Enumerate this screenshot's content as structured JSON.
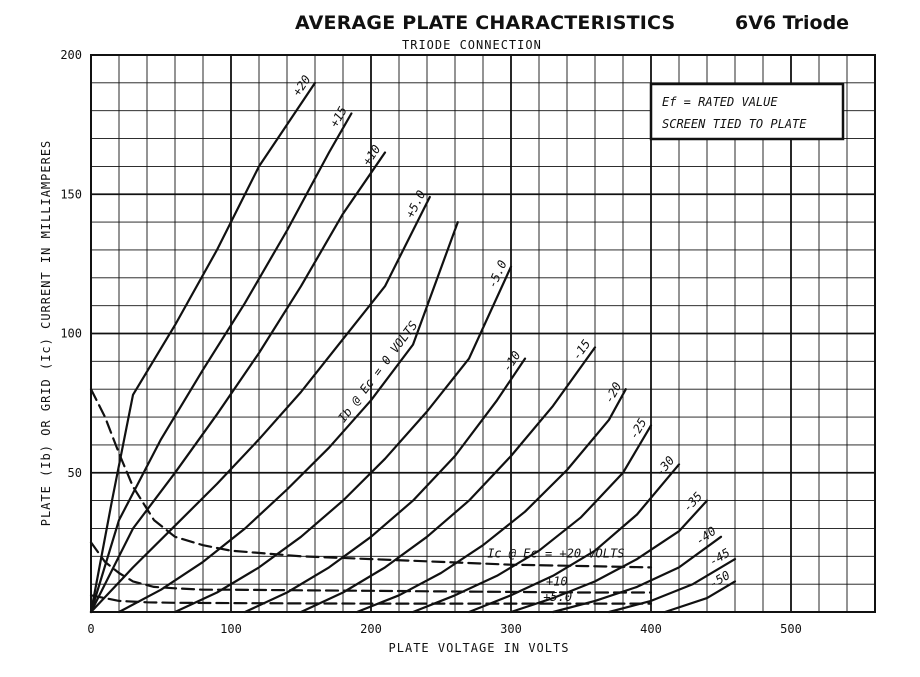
{
  "chart_data": {
    "type": "line",
    "title": "AVERAGE PLATE CHARACTERISTICS",
    "subtitle": "6V6 Triode",
    "connection": "TRIODE CONNECTION",
    "xlabel": "PLATE VOLTAGE IN VOLTS",
    "ylabel": "PLATE (Ib) OR GRID (Ic) CURRENT IN MILLIAMPERES",
    "xlim": [
      0,
      560
    ],
    "ylim": [
      0,
      200
    ],
    "x_ticks": [
      "0",
      "100",
      "200",
      "300",
      "400",
      "500"
    ],
    "y_ticks": [
      "50",
      "100",
      "150",
      "200"
    ],
    "grid": true,
    "notes": [
      "Ef = RATED VALUE",
      "SCREEN TIED TO PLATE"
    ],
    "series": [
      {
        "name": "+20",
        "label": "+20",
        "style": "solid",
        "x": [
          0,
          15,
          30,
          60,
          90,
          120,
          160
        ],
        "y": [
          0,
          40,
          78,
          103,
          130,
          160,
          190
        ]
      },
      {
        "name": "+15",
        "label": "+15",
        "style": "solid",
        "x": [
          0,
          20,
          50,
          80,
          110,
          140,
          170,
          186
        ],
        "y": [
          0,
          33,
          62,
          87,
          111,
          137,
          165,
          179
        ]
      },
      {
        "name": "+10",
        "label": "+10",
        "style": "solid",
        "x": [
          0,
          30,
          60,
          90,
          120,
          150,
          180,
          210
        ],
        "y": [
          0,
          30,
          50,
          71,
          93,
          117,
          143,
          165
        ]
      },
      {
        "name": "+5.0",
        "label": "+5.0",
        "style": "solid",
        "x": [
          0,
          30,
          60,
          90,
          120,
          150,
          180,
          210,
          242
        ],
        "y": [
          0,
          16,
          31,
          46,
          62,
          79,
          98,
          117,
          149
        ]
      },
      {
        "name": "0",
        "label": "Ib @ Ec = 0 VOLTS",
        "style": "solid",
        "x": [
          20,
          50,
          80,
          110,
          140,
          170,
          200,
          230,
          262
        ],
        "y": [
          0,
          8,
          18,
          30,
          44,
          59,
          76,
          96,
          140
        ]
      },
      {
        "name": "-5.0",
        "label": "-5.0",
        "style": "solid",
        "x": [
          60,
          90,
          120,
          150,
          180,
          210,
          240,
          270,
          300
        ],
        "y": [
          0,
          7,
          16,
          27,
          40,
          55,
          72,
          91,
          124
        ]
      },
      {
        "name": "-10",
        "label": "-10",
        "style": "solid",
        "x": [
          110,
          140,
          170,
          200,
          230,
          260,
          290,
          310
        ],
        "y": [
          0,
          7,
          16,
          27,
          40,
          56,
          76,
          91
        ]
      },
      {
        "name": "-15",
        "label": "-15",
        "style": "solid",
        "x": [
          150,
          180,
          210,
          240,
          270,
          300,
          330,
          360
        ],
        "y": [
          0,
          7,
          16,
          27,
          40,
          56,
          74,
          95
        ]
      },
      {
        "name": "-20",
        "label": "-20",
        "style": "solid",
        "x": [
          190,
          220,
          250,
          280,
          310,
          340,
          370,
          382
        ],
        "y": [
          0,
          6,
          14,
          24,
          36,
          51,
          69,
          80
        ]
      },
      {
        "name": "-25",
        "label": "-25",
        "style": "solid",
        "x": [
          230,
          260,
          290,
          320,
          350,
          380,
          400
        ],
        "y": [
          0,
          6,
          13,
          22,
          34,
          50,
          67
        ]
      },
      {
        "name": "-30",
        "label": "-30",
        "style": "solid",
        "x": [
          270,
          300,
          330,
          360,
          390,
          420
        ],
        "y": [
          0,
          6,
          13,
          22,
          35,
          53
        ]
      },
      {
        "name": "-35",
        "label": "-35",
        "style": "solid",
        "x": [
          300,
          330,
          360,
          390,
          420,
          440
        ],
        "y": [
          0,
          5,
          11,
          19,
          29,
          40
        ]
      },
      {
        "name": "-40",
        "label": "-40",
        "style": "solid",
        "x": [
          330,
          360,
          390,
          420,
          450
        ],
        "y": [
          0,
          4,
          9,
          16,
          27
        ]
      },
      {
        "name": "-45",
        "label": "-45",
        "style": "solid",
        "x": [
          370,
          400,
          430,
          460
        ],
        "y": [
          0,
          4,
          10,
          19
        ]
      },
      {
        "name": "-50",
        "label": "-50",
        "style": "solid",
        "x": [
          410,
          440,
          460
        ],
        "y": [
          0,
          5,
          11
        ]
      },
      {
        "name": "Ic +20",
        "label": "Ic @ Ec = +20 VOLTS",
        "style": "dashed",
        "x": [
          0,
          10,
          20,
          30,
          45,
          60,
          80,
          100,
          150,
          200,
          250,
          300,
          350,
          400
        ],
        "y": [
          80,
          70,
          57,
          45,
          33,
          27,
          24,
          22,
          20,
          19,
          18,
          17,
          16.5,
          16
        ]
      },
      {
        "name": "Ic +10",
        "label": "+10",
        "style": "dashed",
        "x": [
          0,
          10,
          20,
          30,
          45,
          60,
          80,
          100,
          150,
          200,
          250,
          300,
          350,
          400
        ],
        "y": [
          25,
          18,
          14,
          11,
          9,
          8.5,
          8,
          8,
          7.8,
          7.6,
          7.4,
          7.2,
          7,
          7
        ]
      },
      {
        "name": "Ic +5.0",
        "label": "+5.0",
        "style": "dashed",
        "x": [
          0,
          20,
          40,
          60,
          100,
          150,
          200,
          250,
          300,
          350,
          400
        ],
        "y": [
          6,
          4,
          3.5,
          3.3,
          3.2,
          3.1,
          3,
          3,
          3,
          3,
          3
        ]
      }
    ]
  }
}
